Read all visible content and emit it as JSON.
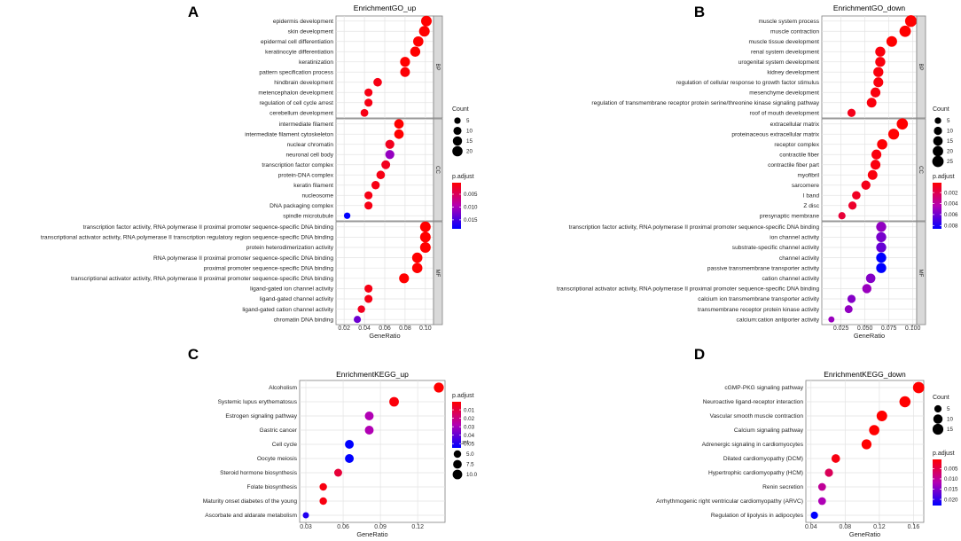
{
  "chart_data": [
    {
      "panel": "A",
      "title": "EnrichmentGO_up",
      "type": "scatter",
      "xlabel": "GeneRatio",
      "xticks": [
        0.02,
        0.04,
        0.06,
        0.08,
        0.1
      ],
      "xtick_labels": [
        "0.02",
        "0.04",
        "0.06",
        "0.08",
        "0.10"
      ],
      "xlim": [
        0.012,
        0.108
      ],
      "padj_range": [
        0.0005,
        0.0185
      ],
      "count_legend": {
        "title": "Count",
        "values": [
          5,
          10,
          15,
          20
        ]
      },
      "color_legend": {
        "title": "p.adjust",
        "values": [
          0.005,
          0.01,
          0.015
        ],
        "labels": [
          "0.005",
          "0.010",
          "0.015"
        ]
      },
      "facets": [
        {
          "name": "BP",
          "terms": [
            {
              "term": "epidermis development",
              "ratio": 0.101,
              "count": 22,
              "padj": 0.0005
            },
            {
              "term": "skin development",
              "ratio": 0.099,
              "count": 22,
              "padj": 0.0005
            },
            {
              "term": "epidermal cell differentiation",
              "ratio": 0.093,
              "count": 20,
              "padj": 0.0005
            },
            {
              "term": "keratinocyte differentiation",
              "ratio": 0.09,
              "count": 19,
              "padj": 0.0005
            },
            {
              "term": "keratinization",
              "ratio": 0.08,
              "count": 18,
              "padj": 0.0005
            },
            {
              "term": "pattern specification process",
              "ratio": 0.08,
              "count": 17,
              "padj": 0.0008
            },
            {
              "term": "hindbrain development",
              "ratio": 0.053,
              "count": 12,
              "padj": 0.0015
            },
            {
              "term": "metencephalon development",
              "ratio": 0.044,
              "count": 10,
              "padj": 0.0015
            },
            {
              "term": "regulation of cell cycle arrest",
              "ratio": 0.044,
              "count": 10,
              "padj": 0.0015
            },
            {
              "term": "cerebellum development",
              "ratio": 0.04,
              "count": 9,
              "padj": 0.0015
            }
          ]
        },
        {
          "name": "CC",
          "terms": [
            {
              "term": "intermediate filament",
              "ratio": 0.074,
              "count": 16,
              "padj": 0.0005
            },
            {
              "term": "intermediate filament cytoskeleton",
              "ratio": 0.074,
              "count": 16,
              "padj": 0.0005
            },
            {
              "term": "nuclear chromatin",
              "ratio": 0.065,
              "count": 14,
              "padj": 0.002
            },
            {
              "term": "neuronal cell body",
              "ratio": 0.065,
              "count": 14,
              "padj": 0.011
            },
            {
              "term": "transcription factor complex",
              "ratio": 0.061,
              "count": 13,
              "padj": 0.002
            },
            {
              "term": "protein-DNA complex",
              "ratio": 0.056,
              "count": 12,
              "padj": 0.0015
            },
            {
              "term": "keratin filament",
              "ratio": 0.051,
              "count": 11,
              "padj": 0.0015
            },
            {
              "term": "nucleosome",
              "ratio": 0.044,
              "count": 10,
              "padj": 0.0015
            },
            {
              "term": "DNA packaging complex",
              "ratio": 0.044,
              "count": 10,
              "padj": 0.0015
            },
            {
              "term": "spindle microtubule",
              "ratio": 0.023,
              "count": 5,
              "padj": 0.0185
            }
          ]
        },
        {
          "name": "MF",
          "terms": [
            {
              "term": "transcription factor activity, RNA polymerase II proximal promoter sequence-specific DNA binding",
              "ratio": 0.1,
              "count": 22,
              "padj": 0.0005
            },
            {
              "term": "transcriptional activator activity, RNA polymerase II transcription regulatory region sequence-specific DNA binding",
              "ratio": 0.1,
              "count": 22,
              "padj": 0.0005
            },
            {
              "term": "protein heterodimerization activity",
              "ratio": 0.1,
              "count": 22,
              "padj": 0.0005
            },
            {
              "term": "RNA polymerase II proximal promoter sequence-specific DNA binding",
              "ratio": 0.092,
              "count": 20,
              "padj": 0.0005
            },
            {
              "term": "proximal promoter sequence-specific DNA binding",
              "ratio": 0.092,
              "count": 20,
              "padj": 0.0005
            },
            {
              "term": "transcriptional activator activity, RNA polymerase II proximal promoter sequence-specific DNA binding",
              "ratio": 0.079,
              "count": 18,
              "padj": 0.0005
            },
            {
              "term": "ligand-gated ion channel activity",
              "ratio": 0.044,
              "count": 10,
              "padj": 0.0015
            },
            {
              "term": "ligand-gated channel activity",
              "ratio": 0.044,
              "count": 10,
              "padj": 0.0015
            },
            {
              "term": "ligand-gated cation channel activity",
              "ratio": 0.037,
              "count": 8,
              "padj": 0.002
            },
            {
              "term": "chromatin DNA binding",
              "ratio": 0.033,
              "count": 7,
              "padj": 0.013
            }
          ]
        }
      ]
    },
    {
      "panel": "B",
      "title": "EnrichmentGO_down",
      "type": "scatter",
      "xlabel": "GeneRatio",
      "xticks": [
        0.025,
        0.05,
        0.075,
        0.1
      ],
      "xtick_labels": [
        "0.025",
        "0.050",
        "0.075",
        "0.100"
      ],
      "xlim": [
        0.005,
        0.104
      ],
      "padj_range": [
        0.0002,
        0.0086
      ],
      "count_legend": {
        "title": "Count",
        "values": [
          5,
          10,
          15,
          20,
          25
        ]
      },
      "color_legend": {
        "title": "p.adjust",
        "values": [
          0.002,
          0.004,
          0.006,
          0.008
        ],
        "labels": [
          "0.002",
          "0.004",
          "0.006",
          "0.008"
        ]
      },
      "facets": [
        {
          "name": "BP",
          "terms": [
            {
              "term": "muscle system process",
              "ratio": 0.098,
              "count": 27,
              "padj": 0.0002
            },
            {
              "term": "muscle contraction",
              "ratio": 0.092,
              "count": 25,
              "padj": 0.0002
            },
            {
              "term": "muscle tissue development",
              "ratio": 0.078,
              "count": 21,
              "padj": 0.0002
            },
            {
              "term": "renal system development",
              "ratio": 0.066,
              "count": 18,
              "padj": 0.0005
            },
            {
              "term": "urogenital system development",
              "ratio": 0.066,
              "count": 18,
              "padj": 0.0005
            },
            {
              "term": "kidney development",
              "ratio": 0.064,
              "count": 18,
              "padj": 0.0005
            },
            {
              "term": "regulation of cellular response to growth factor stimulus",
              "ratio": 0.064,
              "count": 17,
              "padj": 0.0005
            },
            {
              "term": "mesenchyme development",
              "ratio": 0.061,
              "count": 17,
              "padj": 0.0005
            },
            {
              "term": "regulation of transmembrane receptor protein serine/threonine kinase signaling pathway",
              "ratio": 0.057,
              "count": 16,
              "padj": 0.0005
            },
            {
              "term": "roof of mouth development",
              "ratio": 0.036,
              "count": 10,
              "padj": 0.0008
            }
          ]
        },
        {
          "name": "CC",
          "terms": [
            {
              "term": "extracellular matrix",
              "ratio": 0.089,
              "count": 24,
              "padj": 0.0002
            },
            {
              "term": "proteinaceous extracellular matrix",
              "ratio": 0.08,
              "count": 22,
              "padj": 0.0002
            },
            {
              "term": "receptor complex",
              "ratio": 0.068,
              "count": 19,
              "padj": 0.0003
            },
            {
              "term": "contractile fiber",
              "ratio": 0.062,
              "count": 17,
              "padj": 0.0005
            },
            {
              "term": "contractile fiber part",
              "ratio": 0.061,
              "count": 17,
              "padj": 0.0005
            },
            {
              "term": "myofibril",
              "ratio": 0.058,
              "count": 16,
              "padj": 0.0005
            },
            {
              "term": "sarcomere",
              "ratio": 0.051,
              "count": 14,
              "padj": 0.0008
            },
            {
              "term": "I band",
              "ratio": 0.041,
              "count": 11,
              "padj": 0.001
            },
            {
              "term": "Z disc",
              "ratio": 0.037,
              "count": 10,
              "padj": 0.0012
            },
            {
              "term": "presynaptic membrane",
              "ratio": 0.026,
              "count": 7,
              "padj": 0.0015
            }
          ]
        },
        {
          "name": "MF",
          "terms": [
            {
              "term": "transcription factor activity, RNA polymerase II proximal promoter sequence-specific DNA binding",
              "ratio": 0.067,
              "count": 18,
              "padj": 0.0052
            },
            {
              "term": "ion channel activity",
              "ratio": 0.067,
              "count": 18,
              "padj": 0.0058
            },
            {
              "term": "substrate-specific channel activity",
              "ratio": 0.067,
              "count": 18,
              "padj": 0.0062
            },
            {
              "term": "channel activity",
              "ratio": 0.067,
              "count": 18,
              "padj": 0.0086
            },
            {
              "term": "passive transmembrane transporter activity",
              "ratio": 0.067,
              "count": 18,
              "padj": 0.0086
            },
            {
              "term": "cation channel activity",
              "ratio": 0.056,
              "count": 15,
              "padj": 0.0055
            },
            {
              "term": "transcriptional activator activity, RNA polymerase II proximal promoter sequence-specific DNA binding",
              "ratio": 0.052,
              "count": 14,
              "padj": 0.005
            },
            {
              "term": "calcium ion transmembrane transporter activity",
              "ratio": 0.036,
              "count": 10,
              "padj": 0.0055
            },
            {
              "term": "transmembrane receptor protein kinase activity",
              "ratio": 0.033,
              "count": 9,
              "padj": 0.0052
            },
            {
              "term": "calcium:cation antiporter activity",
              "ratio": 0.015,
              "count": 4,
              "padj": 0.005
            }
          ]
        }
      ]
    },
    {
      "panel": "C",
      "title": "EnrichmentKEGG_up",
      "type": "scatter",
      "xlabel": "GeneRatio",
      "xticks": [
        0.03,
        0.06,
        0.09,
        0.12
      ],
      "xtick_labels": [
        "0.03",
        "0.06",
        "0.09",
        "0.12"
      ],
      "xlim": [
        0.025,
        0.142
      ],
      "padj_range": [
        0.0005,
        0.055
      ],
      "count_legend": {
        "title": "Count",
        "values": [
          5.0,
          7.5,
          10.0
        ],
        "labels": [
          "5.0",
          "7.5",
          "10.0"
        ]
      },
      "color_legend": {
        "title": "p.adjust",
        "values": [
          0.01,
          0.02,
          0.03,
          0.04,
          0.05
        ],
        "labels": [
          "0.01",
          "0.02",
          "0.03",
          "0.04",
          "0.05"
        ]
      },
      "facets": [
        {
          "name": "",
          "terms": [
            {
              "term": "Alcoholism",
              "ratio": 0.137,
              "count": 11,
              "padj": 0.0005
            },
            {
              "term": "Systemic lupus erythematosus",
              "ratio": 0.101,
              "count": 10,
              "padj": 0.002
            },
            {
              "term": "Estrogen signaling pathway",
              "ratio": 0.081,
              "count": 8,
              "padj": 0.028
            },
            {
              "term": "Gastric cancer",
              "ratio": 0.081,
              "count": 8,
              "padj": 0.028
            },
            {
              "term": "Cell cycle",
              "ratio": 0.065,
              "count": 8,
              "padj": 0.055
            },
            {
              "term": "Oocyte meiosis",
              "ratio": 0.065,
              "count": 8,
              "padj": 0.055
            },
            {
              "term": "Steroid hormone biosynthesis",
              "ratio": 0.056,
              "count": 6,
              "padj": 0.009
            },
            {
              "term": "Folate biosynthesis",
              "ratio": 0.044,
              "count": 5,
              "padj": 0.003
            },
            {
              "term": "Maturity onset diabetes of the young",
              "ratio": 0.044,
              "count": 5,
              "padj": 0.003
            },
            {
              "term": "Ascorbate and aldarate metabolism",
              "ratio": 0.03,
              "count": 3,
              "padj": 0.05
            }
          ]
        }
      ]
    },
    {
      "panel": "D",
      "title": "EnrichmentKEGG_down",
      "type": "scatter",
      "xlabel": "GeneRatio",
      "xticks": [
        0.04,
        0.08,
        0.12,
        0.16
      ],
      "xtick_labels": [
        "0.04",
        "0.08",
        "0.12",
        "0.16"
      ],
      "xlim": [
        0.034,
        0.172
      ],
      "padj_range": [
        0.0005,
        0.023
      ],
      "count_legend": {
        "title": "Count",
        "values": [
          5,
          10,
          15
        ]
      },
      "color_legend": {
        "title": "p.adjust",
        "values": [
          0.005,
          0.01,
          0.015,
          0.02
        ],
        "labels": [
          "0.005",
          "0.010",
          "0.015",
          "0.020"
        ]
      },
      "facets": [
        {
          "name": "",
          "terms": [
            {
              "term": "cGMP-PKG signaling pathway",
              "ratio": 0.166,
              "count": 17,
              "padj": 0.0005
            },
            {
              "term": "Neuroactive ligand-receptor interaction",
              "ratio": 0.15,
              "count": 16,
              "padj": 0.0005
            },
            {
              "term": "Vascular smooth muscle contraction",
              "ratio": 0.123,
              "count": 14,
              "padj": 0.0005
            },
            {
              "term": "Calcium signaling pathway",
              "ratio": 0.114,
              "count": 13,
              "padj": 0.0005
            },
            {
              "term": "Adrenergic signaling in cardiomyocytes",
              "ratio": 0.105,
              "count": 12,
              "padj": 0.0005
            },
            {
              "term": "Dilated cardiomyopathy (DCM)",
              "ratio": 0.069,
              "count": 8,
              "padj": 0.0015
            },
            {
              "term": "Hypertrophic cardiomyopathy (HCM)",
              "ratio": 0.061,
              "count": 7,
              "padj": 0.006
            },
            {
              "term": "Renin secretion",
              "ratio": 0.053,
              "count": 6,
              "padj": 0.01
            },
            {
              "term": "Arrhythmogenic right ventricular cardiomyopathy (ARVC)",
              "ratio": 0.053,
              "count": 6,
              "padj": 0.012
            },
            {
              "term": "Regulation of lipolysis in adipocytes",
              "ratio": 0.044,
              "count": 5,
              "padj": 0.023
            }
          ]
        }
      ]
    }
  ]
}
